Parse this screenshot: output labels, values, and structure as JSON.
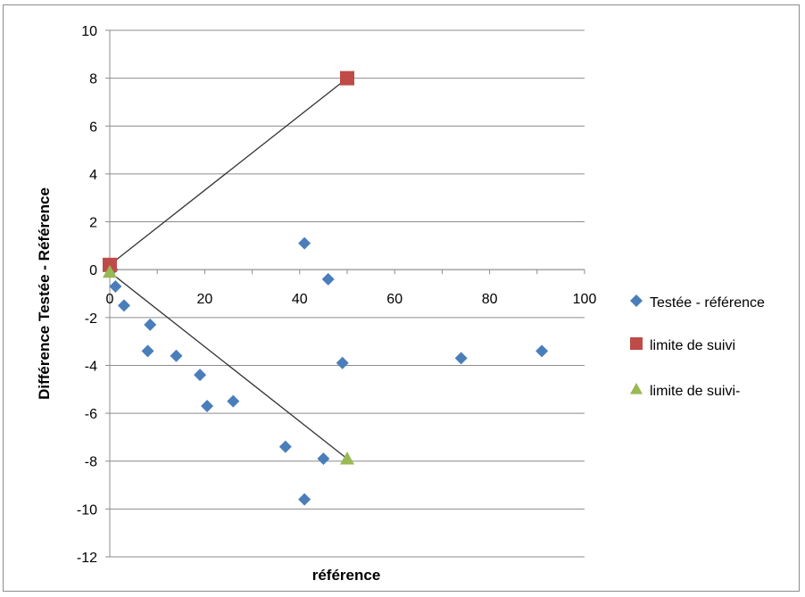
{
  "chart_data": {
    "type": "scatter",
    "title": "",
    "xlabel": "référence",
    "ylabel": "Différence Testée - Référence",
    "xlim": [
      0,
      100
    ],
    "ylim": [
      -12,
      10
    ],
    "x_ticks": [
      0,
      20,
      40,
      60,
      80,
      100
    ],
    "y_ticks": [
      -12,
      -10,
      -8,
      -6,
      -4,
      -2,
      0,
      2,
      4,
      6,
      8,
      10
    ],
    "grid": "horizontal",
    "legend_position": "right",
    "series": [
      {
        "name": "Testée - référence",
        "marker": "diamond",
        "color": "#4a7ebb",
        "line": false,
        "points": [
          [
            0.5,
            0
          ],
          [
            1.2,
            -0.7
          ],
          [
            3,
            -1.5
          ],
          [
            8.5,
            -2.3
          ],
          [
            8,
            -3.4
          ],
          [
            14,
            -3.6
          ],
          [
            19,
            -4.4
          ],
          [
            20.5,
            -5.7
          ],
          [
            26,
            -5.5
          ],
          [
            37,
            -7.4
          ],
          [
            41,
            -9.6
          ],
          [
            45,
            -7.9
          ],
          [
            41,
            1.1
          ],
          [
            46,
            -0.4
          ],
          [
            49,
            -3.9
          ],
          [
            74,
            -3.7
          ],
          [
            91,
            -3.4
          ]
        ]
      },
      {
        "name": "limite de suivi",
        "marker": "square",
        "color": "#be4b48",
        "line": true,
        "points": [
          [
            0,
            0.2
          ],
          [
            50,
            8
          ]
        ]
      },
      {
        "name": "limite de suivi-",
        "marker": "triangle",
        "color": "#98b954",
        "line": true,
        "points": [
          [
            0,
            -0.1
          ],
          [
            50,
            -7.9
          ]
        ]
      }
    ]
  }
}
